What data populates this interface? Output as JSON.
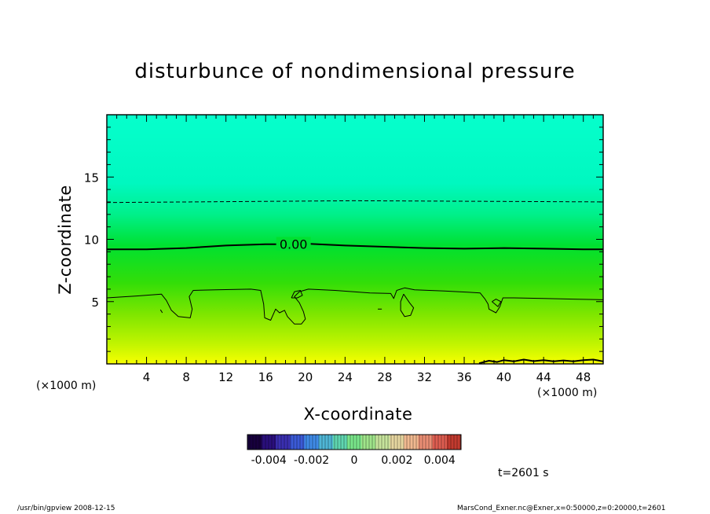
{
  "chart_data": {
    "type": "heatmap",
    "title": "disturbunce of nondimensional pressure",
    "xlabel": "X-coordinate",
    "ylabel": "Z-coordinate",
    "x_unit_left": "(×1000 m)",
    "x_unit_right": "(×1000 m)",
    "xlim": [
      0,
      50
    ],
    "ylim": [
      0,
      20
    ],
    "x_ticks": [
      "4",
      "8",
      "12",
      "16",
      "20",
      "24",
      "28",
      "32",
      "36",
      "40",
      "44",
      "48"
    ],
    "x_tick_values": [
      4,
      8,
      12,
      16,
      20,
      24,
      28,
      32,
      36,
      40,
      44,
      48
    ],
    "y_ticks": [
      "5",
      "10",
      "15"
    ],
    "y_tick_values": [
      5,
      10,
      15
    ],
    "color_gradient": [
      {
        "z": 0.0,
        "color": "#f7ff00"
      },
      {
        "z": 1.5,
        "color": "#c4f500"
      },
      {
        "z": 4.0,
        "color": "#7ee600"
      },
      {
        "z": 6.5,
        "color": "#33de08"
      },
      {
        "z": 9.5,
        "color": "#00e030"
      },
      {
        "z": 12.0,
        "color": "#00f08a"
      },
      {
        "z": 14.5,
        "color": "#00f8c0"
      },
      {
        "z": 20.0,
        "color": "#06ffcc"
      }
    ],
    "contours": [
      {
        "level_label": "0.00",
        "style": "solid",
        "width": 2,
        "points": [
          [
            0,
            9.2
          ],
          [
            4,
            9.2
          ],
          [
            8,
            9.3
          ],
          [
            12,
            9.5
          ],
          [
            16,
            9.6
          ],
          [
            19,
            9.6
          ],
          [
            20,
            9.65
          ],
          [
            24,
            9.5
          ],
          [
            28,
            9.4
          ],
          [
            32,
            9.3
          ],
          [
            36,
            9.25
          ],
          [
            40,
            9.3
          ],
          [
            44,
            9.25
          ],
          [
            48,
            9.2
          ],
          [
            50,
            9.2
          ]
        ]
      },
      {
        "level_label": "",
        "style": "dashed",
        "width": 1,
        "points": [
          [
            0,
            12.95
          ],
          [
            25,
            13.1
          ],
          [
            50,
            13.0
          ]
        ]
      },
      {
        "level_label": "",
        "style": "solid",
        "width": 1,
        "points": [
          [
            0,
            5.3
          ],
          [
            3,
            5.45
          ],
          [
            5.5,
            5.6
          ],
          [
            6,
            5.1
          ],
          [
            6.5,
            4.3
          ],
          [
            7.2,
            3.8
          ],
          [
            8.4,
            3.7
          ],
          [
            8.6,
            4.4
          ],
          [
            8.3,
            5.4
          ],
          [
            8.7,
            5.9
          ],
          [
            11,
            5.95
          ],
          [
            14.5,
            6.0
          ],
          [
            15.5,
            5.9
          ],
          [
            15.8,
            4.8
          ],
          [
            15.9,
            3.7
          ],
          [
            16.5,
            3.5
          ],
          [
            17,
            4.4
          ],
          [
            17.4,
            4.1
          ],
          [
            17.9,
            4.3
          ],
          [
            18.2,
            3.8
          ],
          [
            18.9,
            3.2
          ],
          [
            19.6,
            3.2
          ],
          [
            20,
            3.6
          ],
          [
            19.8,
            4.2
          ],
          [
            19.4,
            4.9
          ],
          [
            18.9,
            5.4
          ],
          [
            19.4,
            5.8
          ],
          [
            20.3,
            6.0
          ],
          [
            23,
            5.9
          ],
          [
            26.5,
            5.7
          ],
          [
            28.6,
            5.65
          ],
          [
            28.9,
            5.25
          ],
          [
            29.2,
            5.9
          ],
          [
            30,
            6.1
          ],
          [
            31,
            5.95
          ],
          [
            34,
            5.85
          ],
          [
            36.5,
            5.75
          ],
          [
            37.6,
            5.7
          ],
          [
            38.1,
            5.2
          ],
          [
            38.4,
            4.8
          ],
          [
            38.5,
            4.4
          ],
          [
            39.2,
            4.1
          ],
          [
            39.6,
            4.6
          ],
          [
            39.9,
            5.3
          ],
          [
            41,
            5.3
          ],
          [
            44,
            5.25
          ],
          [
            47,
            5.2
          ],
          [
            50,
            5.15
          ]
        ]
      },
      {
        "level_label": "",
        "style": "solid",
        "width": 1,
        "points": [
          [
            29.9,
            5.6
          ],
          [
            29.6,
            5.0
          ],
          [
            29.6,
            4.3
          ],
          [
            30.0,
            3.8
          ],
          [
            30.6,
            3.9
          ],
          [
            30.9,
            4.5
          ],
          [
            30.5,
            4.9
          ],
          [
            29.9,
            5.6
          ]
        ]
      },
      {
        "level_label": "",
        "style": "solid",
        "width": 1,
        "points": [
          [
            18.6,
            5.3
          ],
          [
            18.9,
            5.8
          ],
          [
            19.5,
            5.9
          ],
          [
            19.7,
            5.5
          ],
          [
            19.2,
            5.3
          ],
          [
            18.6,
            5.3
          ]
        ]
      },
      {
        "level_label": "",
        "style": "solid",
        "width": 1,
        "points": [
          [
            38.8,
            5.0
          ],
          [
            39.2,
            5.2
          ],
          [
            39.7,
            5.0
          ],
          [
            39.4,
            4.6
          ],
          [
            38.8,
            5.0
          ]
        ]
      },
      {
        "level_label": "",
        "style": "solid",
        "width": 2,
        "points": [
          [
            37.5,
            0.05
          ],
          [
            38.5,
            0.25
          ],
          [
            39.3,
            0.15
          ],
          [
            40,
            0.3
          ],
          [
            41,
            0.2
          ],
          [
            42,
            0.35
          ],
          [
            43,
            0.22
          ],
          [
            44,
            0.3
          ],
          [
            45,
            0.2
          ],
          [
            46,
            0.28
          ],
          [
            47,
            0.2
          ],
          [
            48,
            0.3
          ],
          [
            49,
            0.35
          ],
          [
            50,
            0.2
          ]
        ]
      }
    ],
    "colorbar": {
      "min": -0.005,
      "max": 0.005,
      "tick_labels": [
        "-0.004",
        "-0.002",
        "0",
        "0.002",
        "0.004"
      ],
      "tick_values": [
        -0.004,
        -0.002,
        0,
        0.002,
        0.004
      ],
      "colors": [
        "#17003d",
        "#2a0f7c",
        "#3a2fb0",
        "#3b5ad6",
        "#3f8ae6",
        "#4fb6d6",
        "#5fd6b0",
        "#79e58a",
        "#9fe48a",
        "#c6e49c",
        "#e6d6a0",
        "#f0b890",
        "#ea8e74",
        "#dd5d50",
        "#c23a2f"
      ]
    },
    "grid": false
  },
  "annotation": {
    "time": "t=2601 s"
  },
  "footer": {
    "left": "/usr/bin/gpview   2008-12-15",
    "right": "MarsCond_Exner.nc@Exner,x=0:50000,z=0:20000,t=2601"
  },
  "colors": {
    "contour": "#000000",
    "frame": "#000000",
    "background": "#ffffff"
  }
}
